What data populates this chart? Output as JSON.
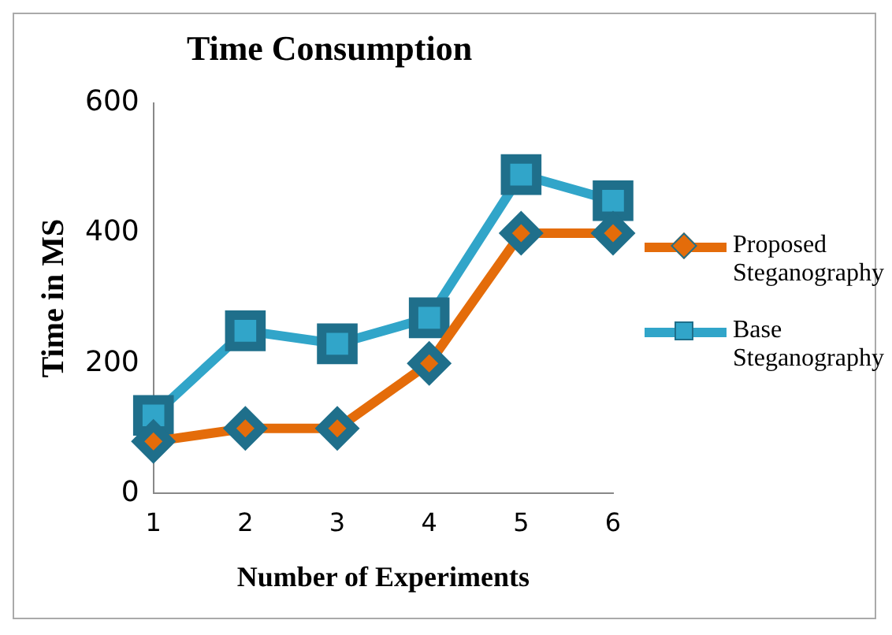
{
  "chart_data": {
    "type": "line",
    "title": "Time Consumption",
    "xlabel": "Number of Experiments",
    "ylabel": "Time in MS",
    "categories": [
      "1",
      "2",
      "3",
      "4",
      "5",
      "6"
    ],
    "series": [
      {
        "name": "Proposed Steganography",
        "color": "#e46c0a",
        "marker": "diamond",
        "values": [
          80,
          100,
          100,
          200,
          400,
          400
        ]
      },
      {
        "name": "Base Steganography",
        "color": "#31a5c9",
        "marker": "square",
        "values": [
          120,
          250,
          230,
          270,
          490,
          450
        ]
      }
    ],
    "ylim": [
      0,
      600
    ],
    "yticks": [
      0,
      200,
      400,
      600
    ],
    "grid": false,
    "legend": "right"
  }
}
